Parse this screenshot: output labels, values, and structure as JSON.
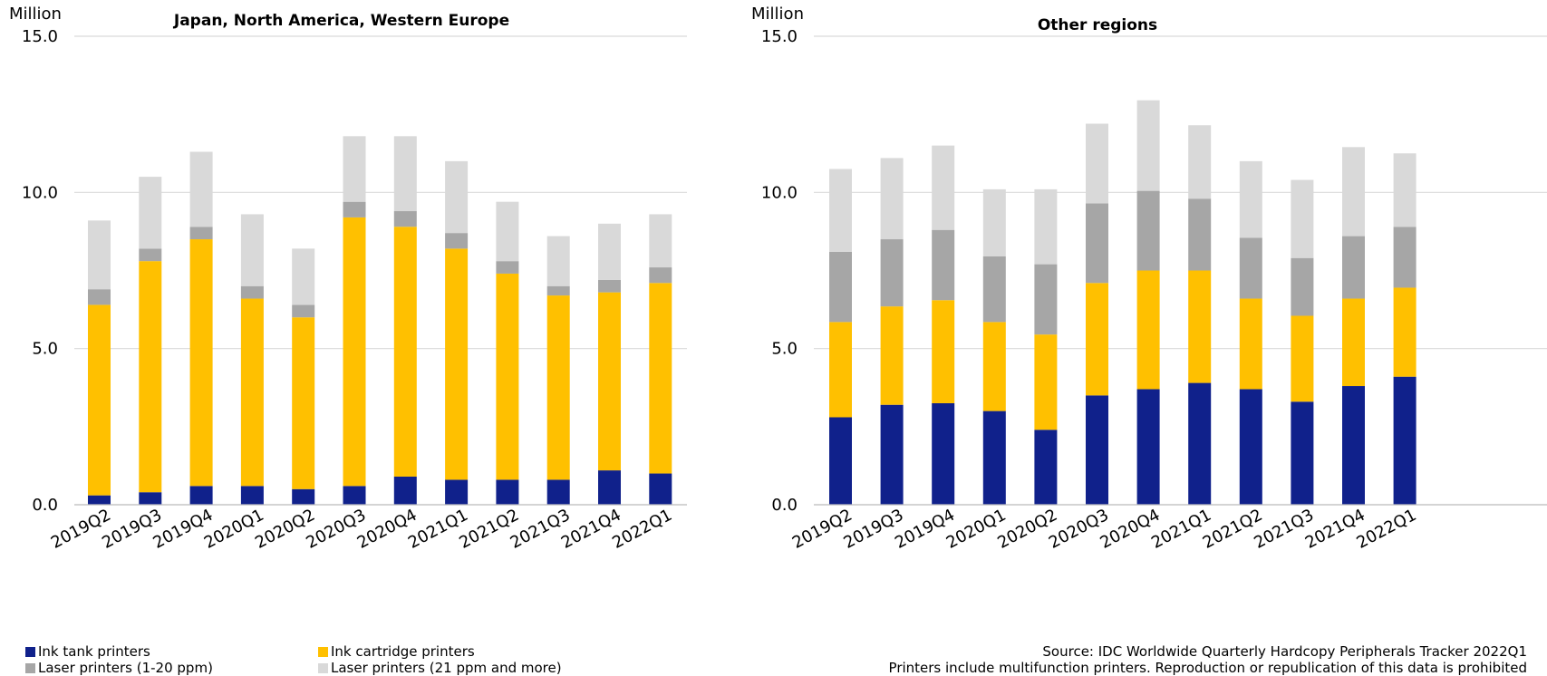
{
  "chart_data": [
    {
      "type": "bar",
      "stacked": true,
      "title": "Japan, North America, Western Europe",
      "ylabel": "Million",
      "ylim": [
        0,
        15
      ],
      "yticks": [
        "0.0",
        "5.0",
        "10.0",
        "15.0"
      ],
      "grid": true,
      "categories": [
        "2019Q2",
        "2019Q3",
        "2019Q4",
        "2020Q1",
        "2020Q2",
        "2020Q3",
        "2020Q4",
        "2021Q1",
        "2021Q2",
        "2021Q3",
        "2021Q4",
        "2022Q1"
      ],
      "series": [
        {
          "name": "Ink tank printers",
          "color": "#10218b",
          "values": [
            0.3,
            0.4,
            0.6,
            0.6,
            0.5,
            0.6,
            0.9,
            0.8,
            0.8,
            0.8,
            1.1,
            1.0
          ]
        },
        {
          "name": "Ink cartridge printers",
          "color": "#ffc000",
          "values": [
            6.1,
            7.4,
            7.9,
            6.0,
            5.5,
            8.6,
            8.0,
            7.4,
            6.6,
            5.9,
            5.7,
            6.1
          ]
        },
        {
          "name": "Laser printers (1-20 ppm)",
          "color": "#a6a6a6",
          "values": [
            0.5,
            0.4,
            0.4,
            0.4,
            0.4,
            0.5,
            0.5,
            0.5,
            0.4,
            0.3,
            0.4,
            0.5
          ]
        },
        {
          "name": "Laser printers (21 ppm and more)",
          "color": "#d9d9d9",
          "values": [
            2.2,
            2.3,
            2.4,
            2.3,
            1.8,
            2.1,
            2.4,
            2.3,
            1.9,
            1.6,
            1.8,
            1.7
          ]
        }
      ]
    },
    {
      "type": "bar",
      "stacked": true,
      "title": "Other regions",
      "ylabel": "Million",
      "ylim": [
        0,
        15
      ],
      "yticks": [
        "0.0",
        "5.0",
        "10.0",
        "15.0"
      ],
      "grid": true,
      "categories": [
        "2019Q2",
        "2019Q3",
        "2019Q4",
        "2020Q1",
        "2020Q2",
        "2020Q3",
        "2020Q4",
        "2021Q1",
        "2021Q2",
        "2021Q3",
        "2021Q4",
        "2022Q1"
      ],
      "series": [
        {
          "name": "Ink tank printers",
          "color": "#10218b",
          "values": [
            2.8,
            3.2,
            3.25,
            3.0,
            2.4,
            3.5,
            3.7,
            3.9,
            3.7,
            3.3,
            3.8,
            4.1
          ]
        },
        {
          "name": "Ink cartridge printers",
          "color": "#ffc000",
          "values": [
            3.05,
            3.15,
            3.3,
            2.85,
            3.05,
            3.6,
            3.8,
            3.6,
            2.9,
            2.75,
            2.8,
            2.85
          ]
        },
        {
          "name": "Laser printers (1-20 ppm)",
          "color": "#a6a6a6",
          "values": [
            2.25,
            2.15,
            2.25,
            2.1,
            2.25,
            2.55,
            2.55,
            2.3,
            1.95,
            1.85,
            2.0,
            1.95
          ]
        },
        {
          "name": "Laser printers (21 ppm and more)",
          "color": "#d9d9d9",
          "values": [
            2.65,
            2.6,
            2.7,
            2.15,
            2.4,
            2.55,
            2.9,
            2.35,
            2.45,
            2.5,
            2.85,
            2.35
          ]
        }
      ]
    }
  ],
  "legend": {
    "items": [
      {
        "label": "Ink tank printers",
        "color": "#10218b"
      },
      {
        "label": "Ink cartridge printers",
        "color": "#ffc000"
      },
      {
        "label": "Laser printers (1-20 ppm)",
        "color": "#a6a6a6"
      },
      {
        "label": "Laser printers (21 ppm and more)",
        "color": "#d9d9d9"
      }
    ]
  },
  "source": {
    "line1": "Source: IDC Worldwide Quarterly Hardcopy Peripherals Tracker 2022Q1",
    "line2": "Printers include multifunction printers. Reproduction or republication of this data is prohibited"
  }
}
